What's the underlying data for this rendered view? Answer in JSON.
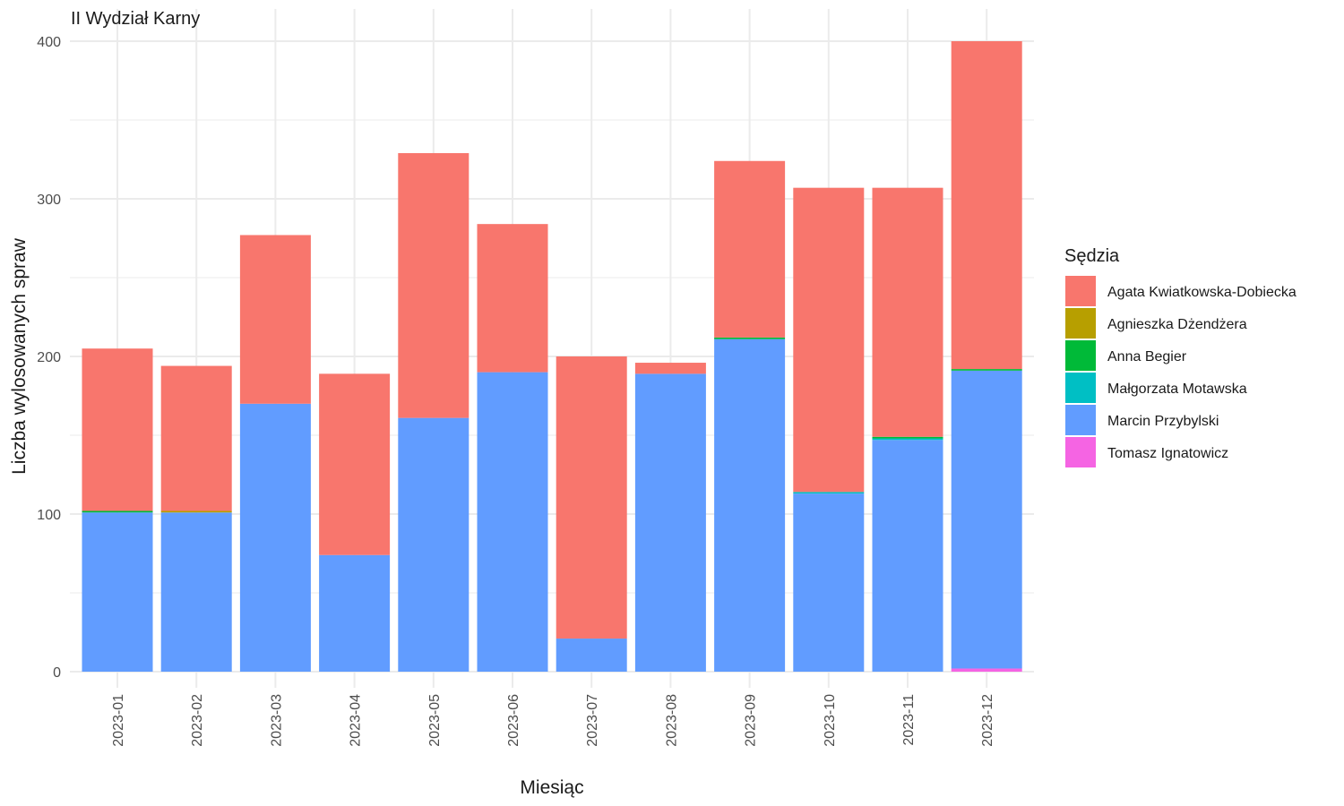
{
  "chart_data": {
    "type": "bar",
    "stacked": true,
    "title": "II Wydział Karny",
    "xlabel": "Miesiąc",
    "ylabel": "Liczba wylosowanych spraw",
    "ylim": [
      0,
      400
    ],
    "yticks": [
      0,
      100,
      200,
      300,
      400
    ],
    "grid": true,
    "legend_title": "Sędzia",
    "legend_position": "right",
    "categories": [
      "2023-01",
      "2023-02",
      "2023-03",
      "2023-04",
      "2023-05",
      "2023-06",
      "2023-07",
      "2023-08",
      "2023-09",
      "2023-10",
      "2023-11",
      "2023-12"
    ],
    "series": [
      {
        "name": "Agata Kwiatkowska-Dobiecka",
        "color": "#F8766D",
        "values": [
          103,
          92,
          107,
          115,
          168,
          94,
          179,
          7,
          112,
          193,
          158,
          208
        ]
      },
      {
        "name": "Agnieszka Dżendżera",
        "color": "#B79F00",
        "values": [
          0,
          1,
          0,
          0,
          0,
          0,
          0,
          0,
          0,
          0,
          0,
          0
        ]
      },
      {
        "name": "Anna Begier",
        "color": "#00BA38",
        "values": [
          1,
          0,
          0,
          0,
          0,
          0,
          0,
          0,
          1,
          0,
          1,
          1
        ]
      },
      {
        "name": "Małgorzata Motawska",
        "color": "#00BFC4",
        "values": [
          0,
          0,
          0,
          0,
          0,
          0,
          0,
          0,
          0,
          1,
          1,
          0
        ]
      },
      {
        "name": "Marcin Przybylski",
        "color": "#619CFF",
        "values": [
          101,
          101,
          170,
          74,
          161,
          190,
          21,
          189,
          211,
          113,
          147,
          189
        ]
      },
      {
        "name": "Tomasz Ignatowicz",
        "color": "#F564E3",
        "values": [
          0,
          0,
          0,
          0,
          0,
          0,
          0,
          0,
          0,
          0,
          0,
          2
        ]
      }
    ]
  }
}
